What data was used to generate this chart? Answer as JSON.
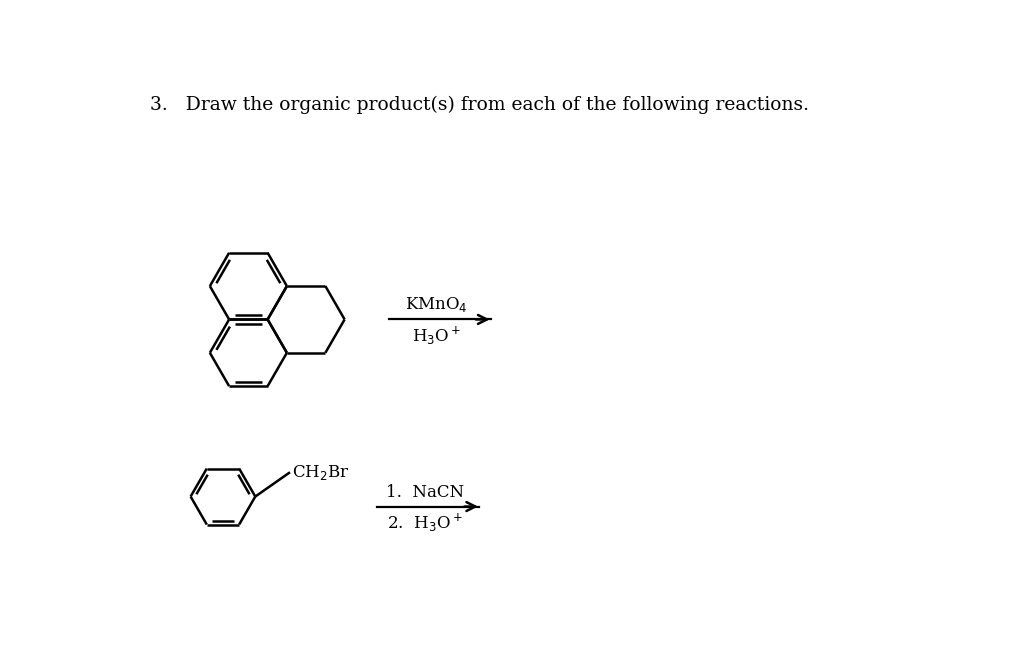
{
  "title": "3.   Draw the organic product(s) from each of the following reactions.",
  "background": "#ffffff",
  "line_color": "#000000",
  "line_width": 1.8
}
